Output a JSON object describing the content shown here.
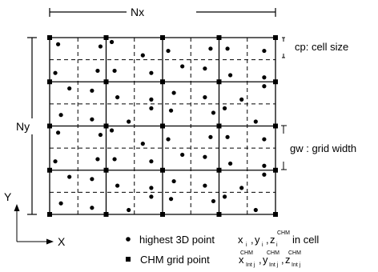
{
  "labels": {
    "nx": "Nx",
    "ny": "Ny",
    "y_axis": "Y",
    "x_axis": "X",
    "cell_size": "cp: cell size",
    "grid_width": "gw : grid width"
  },
  "legend": {
    "point_text": "highest 3D point",
    "point_vars": [
      "x",
      "y",
      "z"
    ],
    "point_sub": "i",
    "point_sup": "CHM",
    "point_suffix": "in cell",
    "grid_text": "CHM grid point",
    "grid_vars": [
      "x",
      "y",
      "z"
    ],
    "grid_sub": "Int j",
    "grid_sup": "CHM"
  },
  "colors": {
    "ink": "#000000",
    "background": "#ffffff"
  }
}
